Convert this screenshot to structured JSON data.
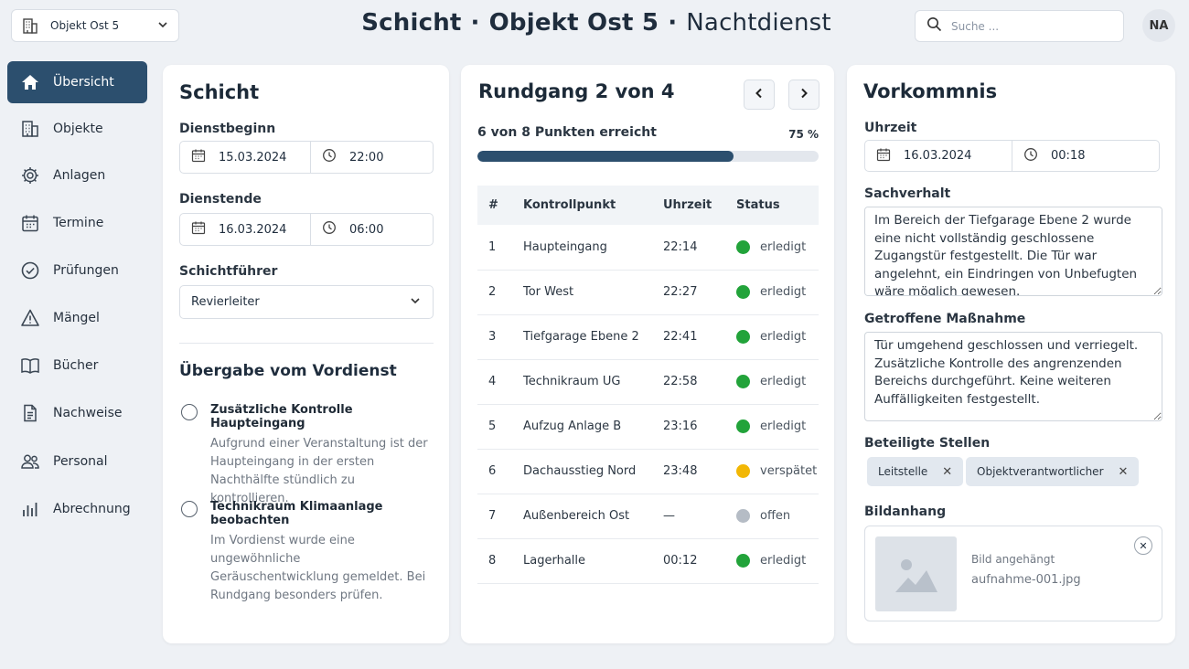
{
  "header": {
    "object_select": "Objekt Ost 5",
    "title_part1": "Schicht",
    "title_part2": "Objekt Ost 5",
    "title_part3": "Nachtdienst",
    "separator": "·",
    "search_placeholder": "Suche ...",
    "avatar_initials": "NA"
  },
  "sidebar": {
    "items": [
      {
        "label": "Übersicht",
        "icon": "home-icon",
        "active": true
      },
      {
        "label": "Objekte",
        "icon": "building-icon"
      },
      {
        "label": "Anlagen",
        "icon": "gear-icon"
      },
      {
        "label": "Termine",
        "icon": "calendar-icon"
      },
      {
        "label": "Prüfungen",
        "icon": "check-circle-icon"
      },
      {
        "label": "Mängel",
        "icon": "warning-icon"
      },
      {
        "label": "Bücher",
        "icon": "book-icon"
      },
      {
        "label": "Nachweise",
        "icon": "document-icon"
      },
      {
        "label": "Personal",
        "icon": "people-icon"
      },
      {
        "label": "Abrechnung",
        "icon": "bar-chart-icon"
      }
    ]
  },
  "shift": {
    "title": "Schicht",
    "start_label": "Dienstbeginn",
    "start_date": "15.03.2024",
    "start_time": "22:00",
    "end_label": "Dienstende",
    "end_date": "16.03.2024",
    "end_time": "06:00",
    "leader_label": "Schichtführer",
    "leader_value": "Revierleiter",
    "handover_title": "Übergabe vom Vordienst",
    "handover": [
      {
        "title": "Zusätzliche Kontrolle Haupteingang",
        "text": "Aufgrund einer Veranstaltung ist der Haupteingang in der ersten Nachthälfte stündlich zu kontrollieren."
      },
      {
        "title": "Technikraum Klimaanlage beobachten",
        "text": "Im Vordienst wurde eine ungewöhnliche Geräuschentwicklung gemeldet. Bei Rundgang besonders prüfen."
      }
    ]
  },
  "round": {
    "title": "Rundgang 2 von 4",
    "progress_text": "6 von 8 Punkten erreicht",
    "progress_pct_label": "75 %",
    "progress_fraction": 0.75,
    "columns": [
      "#",
      "Kontrollpunkt",
      "Uhrzeit",
      "Status"
    ],
    "rows": [
      {
        "n": "1",
        "point": "Haupteingang",
        "time": "22:14",
        "status": "erledigt",
        "color": "#22a33a"
      },
      {
        "n": "2",
        "point": "Tor West",
        "time": "22:27",
        "status": "erledigt",
        "color": "#22a33a"
      },
      {
        "n": "3",
        "point": "Tiefgarage Ebene 2",
        "time": "22:41",
        "status": "erledigt",
        "color": "#22a33a"
      },
      {
        "n": "4",
        "point": "Technikraum UG",
        "time": "22:58",
        "status": "erledigt",
        "color": "#22a33a"
      },
      {
        "n": "5",
        "point": "Aufzug Anlage B",
        "time": "23:16",
        "status": "erledigt",
        "color": "#22a33a"
      },
      {
        "n": "6",
        "point": "Dachausstieg Nord",
        "time": "23:48",
        "status": "verspätet",
        "color": "#f2b705"
      },
      {
        "n": "7",
        "point": "Außenbereich Ost",
        "time": "—",
        "status": "offen",
        "color": "#b5bcc5"
      },
      {
        "n": "8",
        "point": "Lagerhalle",
        "time": "00:12",
        "status": "erledigt",
        "color": "#22a33a"
      }
    ]
  },
  "incident": {
    "title": "Vorkommnis",
    "time_label": "Uhrzeit",
    "date": "16.03.2024",
    "time": "00:18",
    "facts_label": "Sachverhalt",
    "facts": "Im Bereich der Tiefgarage Ebene 2 wurde eine nicht vollständig geschlossene Zugangstür festgestellt. Die Tür war angelehnt, ein Eindringen von Unbefugten wäre möglich gewesen.",
    "measure_label": "Getroffene Maßnahme",
    "measure": "Tür umgehend geschlossen und verriegelt. Zusätzliche Kontrolle des angrenzenden Bereichs durchgeführt. Keine weiteren Auffälligkeiten festgestellt.",
    "parties_label": "Beteiligte Stellen",
    "parties": [
      "Leitstelle",
      "Objektverantwortlicher"
    ],
    "attachment_label": "Bildanhang",
    "attachment_status": "Bild angehängt",
    "attachment_file": "aufnahme-001.jpg"
  },
  "colors": {
    "accent": "#2c4f6e",
    "done": "#22a33a",
    "late": "#f2b705",
    "open": "#b5bcc5"
  }
}
